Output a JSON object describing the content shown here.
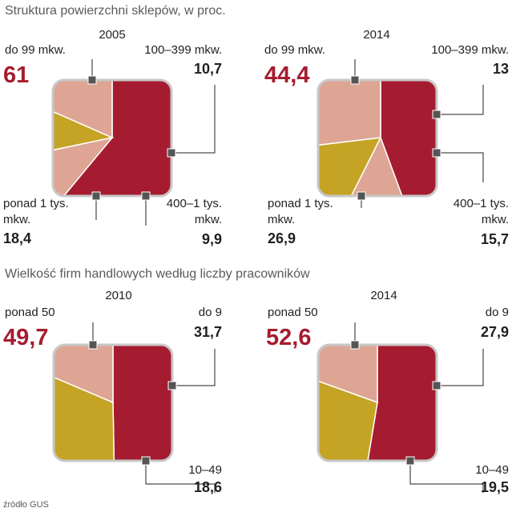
{
  "sections": {
    "top_title": "Struktura powierzchni sklepów, w proc.",
    "bottom_title": "Wielkość firm handlowych według liczby pracowników",
    "source": "źródło GUS"
  },
  "colors": {
    "dark_red": "#a51c30",
    "pink": "#dea594",
    "gold": "#c5a325",
    "emphasis_text": "#a51c30"
  },
  "chart_data": [
    {
      "type": "pie",
      "group": "Struktura powierzchni sklepów, w proc.",
      "title": "2005",
      "slices": [
        {
          "label": "do 99 mkw.",
          "value": 61,
          "value_text": "61",
          "color": "#a51c30",
          "emphasis": true
        },
        {
          "label": "100–399 mkw.",
          "value": 10.7,
          "value_text": "10,7",
          "color": "#dea594"
        },
        {
          "label": "400–1 tys. mkw.",
          "value": 9.9,
          "value_text": "9,9",
          "color": "#c5a325"
        },
        {
          "label": "ponad 1 tys. mkw.",
          "value": 18.4,
          "value_text": "18,4",
          "color": "#dea594"
        }
      ]
    },
    {
      "type": "pie",
      "group": "Struktura powierzchni sklepów, w proc.",
      "title": "2014",
      "slices": [
        {
          "label": "do 99 mkw.",
          "value": 44.4,
          "value_text": "44,4",
          "color": "#a51c30",
          "emphasis": true
        },
        {
          "label": "100–399 mkw.",
          "value": 13,
          "value_text": "13",
          "color": "#dea594"
        },
        {
          "label": "400–1 tys. mkw.",
          "value": 15.7,
          "value_text": "15,7",
          "color": "#c5a325"
        },
        {
          "label": "ponad 1 tys. mkw.",
          "value": 26.9,
          "value_text": "26,9",
          "color": "#dea594"
        }
      ]
    },
    {
      "type": "pie",
      "group": "Wielkość firm handlowych według liczby pracowników",
      "title": "2010",
      "slices": [
        {
          "label": "ponad 50",
          "value": 49.7,
          "value_text": "49,7",
          "color": "#a51c30",
          "emphasis": true
        },
        {
          "label": "do 9",
          "value": 31.7,
          "value_text": "31,7",
          "color": "#c5a325"
        },
        {
          "label": "10–49",
          "value": 18.6,
          "value_text": "18,6",
          "color": "#dea594"
        }
      ]
    },
    {
      "type": "pie",
      "group": "Wielkość firm handlowych według liczby pracowników",
      "title": "2014",
      "slices": [
        {
          "label": "ponad 50",
          "value": 52.6,
          "value_text": "52,6",
          "color": "#a51c30",
          "emphasis": true
        },
        {
          "label": "do 9",
          "value": 27.9,
          "value_text": "27,9",
          "color": "#c5a325"
        },
        {
          "label": "10–49",
          "value": 19.5,
          "value_text": "19,5",
          "color": "#dea594"
        }
      ]
    }
  ]
}
